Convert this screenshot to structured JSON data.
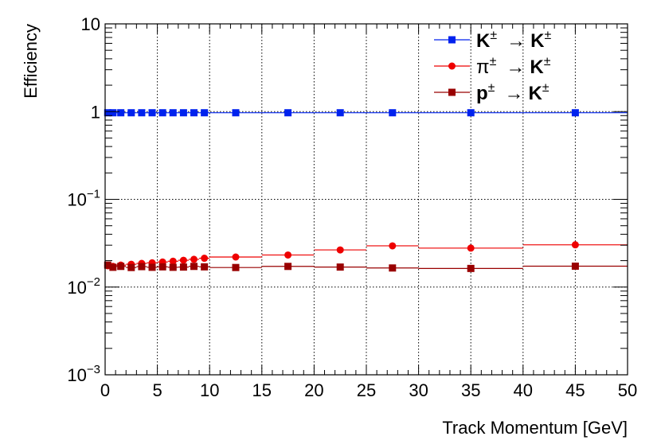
{
  "chart_data": {
    "type": "scatter",
    "xlabel": "Track Momentum [GeV]",
    "ylabel": "Efficiency",
    "xlim": [
      0,
      50
    ],
    "ylim": [
      0.001,
      10
    ],
    "yscale": "log",
    "grid": true,
    "legend_position": "top-right",
    "x_ticks": [
      "0",
      "5",
      "10",
      "15",
      "20",
      "25",
      "30",
      "35",
      "40",
      "45",
      "50"
    ],
    "y_ticks": [
      {
        "base": "10",
        "exp": "−3",
        "value": 0.001
      },
      {
        "base": "10",
        "exp": "−2",
        "value": 0.01
      },
      {
        "base": "10",
        "exp": "−1",
        "value": 0.1
      },
      {
        "base": "1",
        "exp": "",
        "value": 1
      },
      {
        "base": "10",
        "exp": "",
        "value": 10
      }
    ],
    "series": [
      {
        "name": "K± → K±",
        "legend": {
          "a": "K",
          "a_sup": "±",
          "arrow": "→",
          "b": "K",
          "b_sup": "±"
        },
        "color": "#0022ee",
        "marker": "square",
        "points": [
          {
            "xlo": 0,
            "xhi": 0.5,
            "x": 0.25,
            "y": 0.97
          },
          {
            "xlo": 0.5,
            "xhi": 1,
            "x": 0.75,
            "y": 0.97
          },
          {
            "xlo": 1,
            "xhi": 2,
            "x": 1.5,
            "y": 0.97
          },
          {
            "xlo": 2,
            "xhi": 3,
            "x": 2.5,
            "y": 0.97
          },
          {
            "xlo": 3,
            "xhi": 4,
            "x": 3.5,
            "y": 0.97
          },
          {
            "xlo": 4,
            "xhi": 5,
            "x": 4.5,
            "y": 0.97
          },
          {
            "xlo": 5,
            "xhi": 6,
            "x": 5.5,
            "y": 0.97
          },
          {
            "xlo": 6,
            "xhi": 7,
            "x": 6.5,
            "y": 0.97
          },
          {
            "xlo": 7,
            "xhi": 8,
            "x": 7.5,
            "y": 0.97
          },
          {
            "xlo": 8,
            "xhi": 9,
            "x": 8.5,
            "y": 0.97
          },
          {
            "xlo": 9,
            "xhi": 10,
            "x": 9.5,
            "y": 0.97
          },
          {
            "xlo": 10,
            "xhi": 15,
            "x": 12.5,
            "y": 0.97
          },
          {
            "xlo": 15,
            "xhi": 20,
            "x": 17.5,
            "y": 0.97
          },
          {
            "xlo": 20,
            "xhi": 25,
            "x": 22.5,
            "y": 0.97
          },
          {
            "xlo": 25,
            "xhi": 30,
            "x": 27.5,
            "y": 0.97
          },
          {
            "xlo": 30,
            "xhi": 40,
            "x": 35,
            "y": 0.97
          },
          {
            "xlo": 40,
            "xhi": 50,
            "x": 45,
            "y": 0.97
          }
        ]
      },
      {
        "name": "π± → K±",
        "legend": {
          "a": "π",
          "a_sup": "±",
          "arrow": "→",
          "b": "K",
          "b_sup": "±"
        },
        "color": "#ee0000",
        "marker": "circle",
        "points": [
          {
            "xlo": 0,
            "xhi": 0.5,
            "x": 0.25,
            "y": 0.0175
          },
          {
            "xlo": 0.5,
            "xhi": 1,
            "x": 0.75,
            "y": 0.0172
          },
          {
            "xlo": 1,
            "xhi": 2,
            "x": 1.5,
            "y": 0.0178
          },
          {
            "xlo": 2,
            "xhi": 3,
            "x": 2.5,
            "y": 0.0182
          },
          {
            "xlo": 3,
            "xhi": 4,
            "x": 3.5,
            "y": 0.0186
          },
          {
            "xlo": 4,
            "xhi": 5,
            "x": 4.5,
            "y": 0.0189
          },
          {
            "xlo": 5,
            "xhi": 6,
            "x": 5.5,
            "y": 0.0193
          },
          {
            "xlo": 6,
            "xhi": 7,
            "x": 6.5,
            "y": 0.0197
          },
          {
            "xlo": 7,
            "xhi": 8,
            "x": 7.5,
            "y": 0.0202
          },
          {
            "xlo": 8,
            "xhi": 9,
            "x": 8.5,
            "y": 0.0207
          },
          {
            "xlo": 9,
            "xhi": 10,
            "x": 9.5,
            "y": 0.0213
          },
          {
            "xlo": 10,
            "xhi": 15,
            "x": 12.5,
            "y": 0.022
          },
          {
            "xlo": 15,
            "xhi": 20,
            "x": 17.5,
            "y": 0.0232
          },
          {
            "xlo": 20,
            "xhi": 25,
            "x": 22.5,
            "y": 0.0265
          },
          {
            "xlo": 25,
            "xhi": 30,
            "x": 27.5,
            "y": 0.0295
          },
          {
            "xlo": 30,
            "xhi": 40,
            "x": 35,
            "y": 0.0278
          },
          {
            "xlo": 40,
            "xhi": 50,
            "x": 45,
            "y": 0.0303
          }
        ]
      },
      {
        "name": "p± → K±",
        "legend": {
          "a": "p",
          "a_sup": "±",
          "arrow": "→",
          "b": "K",
          "b_sup": "±"
        },
        "color": "#990000",
        "marker": "square",
        "points": [
          {
            "xlo": 0,
            "xhi": 0.5,
            "x": 0.25,
            "y": 0.0178
          },
          {
            "xlo": 0.5,
            "xhi": 1,
            "x": 0.75,
            "y": 0.0168
          },
          {
            "xlo": 1,
            "xhi": 2,
            "x": 1.5,
            "y": 0.0172
          },
          {
            "xlo": 2,
            "xhi": 3,
            "x": 2.5,
            "y": 0.0167
          },
          {
            "xlo": 3,
            "xhi": 4,
            "x": 3.5,
            "y": 0.0171
          },
          {
            "xlo": 4,
            "xhi": 5,
            "x": 4.5,
            "y": 0.0168
          },
          {
            "xlo": 5,
            "xhi": 6,
            "x": 5.5,
            "y": 0.017
          },
          {
            "xlo": 6,
            "xhi": 7,
            "x": 6.5,
            "y": 0.0168
          },
          {
            "xlo": 7,
            "xhi": 8,
            "x": 7.5,
            "y": 0.0169
          },
          {
            "xlo": 8,
            "xhi": 9,
            "x": 8.5,
            "y": 0.0172
          },
          {
            "xlo": 9,
            "xhi": 10,
            "x": 9.5,
            "y": 0.017
          },
          {
            "xlo": 10,
            "xhi": 15,
            "x": 12.5,
            "y": 0.0167
          },
          {
            "xlo": 15,
            "xhi": 20,
            "x": 17.5,
            "y": 0.0172
          },
          {
            "xlo": 20,
            "xhi": 25,
            "x": 22.5,
            "y": 0.0169
          },
          {
            "xlo": 25,
            "xhi": 30,
            "x": 27.5,
            "y": 0.0165
          },
          {
            "xlo": 30,
            "xhi": 40,
            "x": 35,
            "y": 0.0163
          },
          {
            "xlo": 40,
            "xhi": 50,
            "x": 45,
            "y": 0.0173
          }
        ]
      }
    ]
  }
}
